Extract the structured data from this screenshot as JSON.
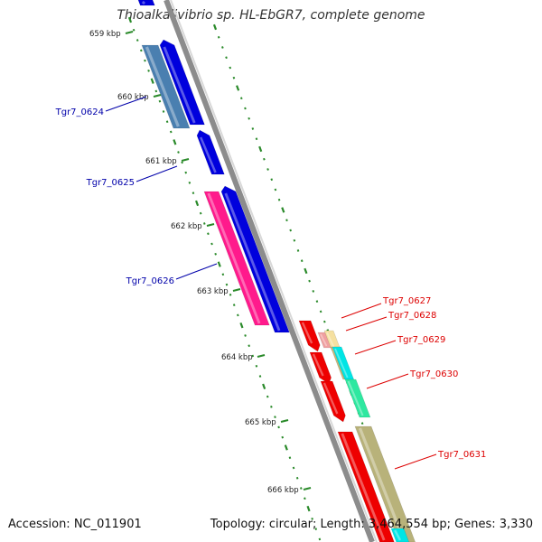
{
  "title": "Thioalkalivibrio sp. HL-EbGR7, complete genome",
  "accession": "Accession: NC_011901",
  "topology": "Topology: circular; Length: 3,464,554 bp; Genes: 3,330",
  "ruler": {
    "unit": "kbp",
    "labels": [
      "659 kbp",
      "660 kbp",
      "661 kbp",
      "662 kbp",
      "663 kbp",
      "664 kbp",
      "665 kbp",
      "666 kbp"
    ]
  },
  "genes": [
    {
      "label": "Tgr7_0624",
      "strand": "reverse",
      "color": "#0000dd"
    },
    {
      "label": "Tgr7_0625",
      "strand": "reverse",
      "color": "#0000dd"
    },
    {
      "label": "Tgr7_0626",
      "strand": "reverse",
      "color": "#0000dd"
    },
    {
      "label": "Tgr7_0627",
      "strand": "forward",
      "color": "#ee0000"
    },
    {
      "label": "Tgr7_0628",
      "strand": "forward",
      "color": "#ee0000"
    },
    {
      "label": "Tgr7_0629",
      "strand": "forward",
      "color": "#ee0000"
    },
    {
      "label": "Tgr7_0630",
      "strand": "forward",
      "color": "#ee0000"
    },
    {
      "label": "Tgr7_0631",
      "strand": "forward",
      "color": "#ee0000"
    }
  ],
  "colors": {
    "reverse_label": "#0000aa",
    "forward_label": "#dd0000",
    "backbone": "#8c8c8c",
    "tick": "#2a8a2a"
  }
}
